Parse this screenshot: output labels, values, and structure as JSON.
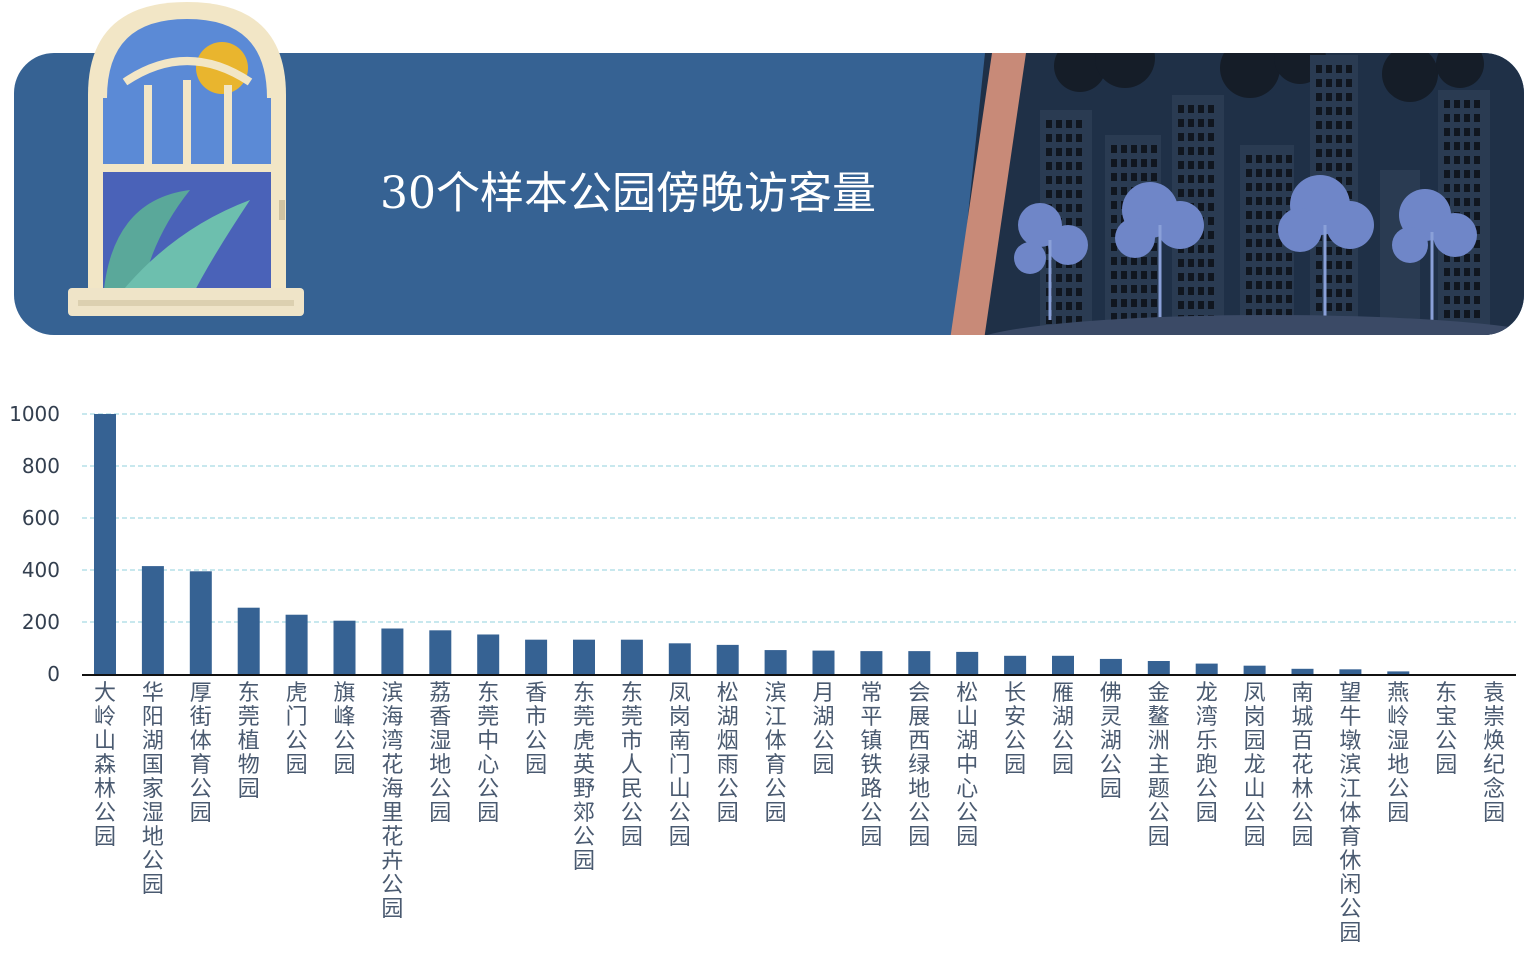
{
  "banner": {
    "title": "30个样本公园傍晚访客量"
  },
  "colors": {
    "banner_bg": "#366293",
    "bar": "#366293",
    "grid": "#a8dbe4",
    "axis_text": "#333f4f",
    "label_text": "#4a5a70"
  },
  "chart_data": {
    "type": "bar",
    "title": "30个样本公园傍晚访客量",
    "xlabel": "",
    "ylabel": "",
    "ylim": [
      0,
      1000
    ],
    "yticks": [
      0,
      200,
      400,
      600,
      800,
      1000
    ],
    "grid": true,
    "categories": [
      "大岭山森林公园",
      "华阳湖国家湿地公园",
      "厚街体育公园",
      "东莞植物园",
      "虎门公园",
      "旗峰公园",
      "滨海湾花海里花卉公园",
      "荔香湿地公园",
      "东莞中心公园",
      "香市公园",
      "东莞虎英野郊公园",
      "东莞市人民公园",
      "凤岗南门山公园",
      "松湖烟雨公园",
      "滨江体育公园",
      "月湖公园",
      "常平镇铁路公园",
      "会展西绿地公园",
      "松山湖中心公园",
      "长安公园",
      "雁湖公园",
      "佛灵湖公园",
      "金鳌洲主题公园",
      "龙湾乐跑公园",
      "凤岗园龙山公园",
      "南城百花林公园",
      "望牛墩滨江体育休闲公园",
      "燕岭湿地公园",
      "东宝公园",
      "袁崇焕纪念园"
    ],
    "values": [
      1000,
      415,
      395,
      255,
      228,
      205,
      175,
      168,
      152,
      132,
      132,
      132,
      118,
      112,
      92,
      90,
      88,
      88,
      85,
      70,
      70,
      58,
      50,
      40,
      32,
      20,
      18,
      10,
      0,
      0
    ]
  }
}
